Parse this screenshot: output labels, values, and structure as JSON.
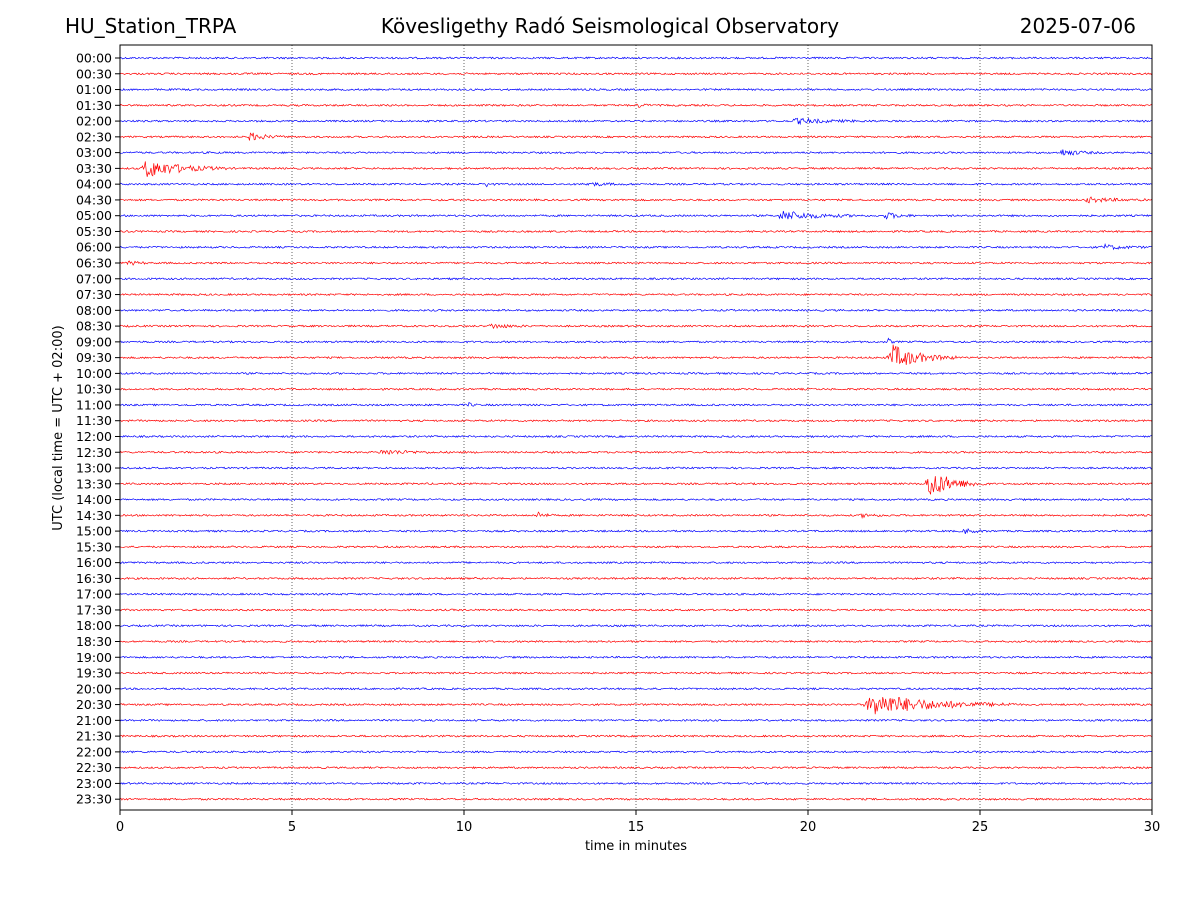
{
  "header": {
    "station": "HU_Station_TRPA",
    "title": "Kövesligethy Radó Seismological Observatory",
    "date": "2025-07-06"
  },
  "chart_data": {
    "type": "line",
    "title": "Kövesligethy Radó Seismological Observatory",
    "xlabel": "time in minutes",
    "ylabel": "UTC (local time = UTC + 02:00)",
    "xlim": [
      0,
      30
    ],
    "xticks": [
      0,
      5,
      10,
      15,
      20,
      25,
      30
    ],
    "x_gridlines": [
      5,
      10,
      15,
      20,
      25
    ],
    "grid": "x-dotted",
    "colors": {
      "even_rows": "#0000ff",
      "odd_rows": "#ff0000"
    },
    "rows": [
      {
        "label": "00:00",
        "events": []
      },
      {
        "label": "00:30",
        "events": []
      },
      {
        "label": "01:00",
        "events": []
      },
      {
        "label": "01:30",
        "events": [
          {
            "t": 15.0,
            "amp": 3,
            "dur": 0.5
          }
        ]
      },
      {
        "label": "02:00",
        "events": [
          {
            "t": 19.5,
            "amp": 3,
            "dur": 2.5
          }
        ]
      },
      {
        "label": "02:30",
        "events": [
          {
            "t": 3.7,
            "amp": 5,
            "dur": 1.2
          }
        ]
      },
      {
        "label": "03:00",
        "events": [
          {
            "t": 27.3,
            "amp": 4,
            "dur": 1.3
          }
        ]
      },
      {
        "label": "03:30",
        "events": [
          {
            "t": 0.6,
            "amp": 12,
            "dur": 2.5
          }
        ]
      },
      {
        "label": "04:00",
        "events": [
          {
            "t": 10.6,
            "amp": 4,
            "dur": 0.3
          },
          {
            "t": 13.5,
            "amp": 2,
            "dur": 1.5
          }
        ]
      },
      {
        "label": "04:30",
        "events": [
          {
            "t": 28.0,
            "amp": 3,
            "dur": 2.0
          }
        ]
      },
      {
        "label": "05:00",
        "events": [
          {
            "t": 19.1,
            "amp": 6,
            "dur": 2.5
          },
          {
            "t": 22.2,
            "amp": 4,
            "dur": 1.0
          }
        ]
      },
      {
        "label": "05:30",
        "events": []
      },
      {
        "label": "06:00",
        "events": [
          {
            "t": 28.5,
            "amp": 3,
            "dur": 1.5
          }
        ]
      },
      {
        "label": "06:30",
        "events": [
          {
            "t": 0.2,
            "amp": 3,
            "dur": 0.6
          }
        ]
      },
      {
        "label": "07:00",
        "events": []
      },
      {
        "label": "07:30",
        "events": []
      },
      {
        "label": "08:00",
        "events": []
      },
      {
        "label": "08:30",
        "events": [
          {
            "t": 10.7,
            "amp": 3,
            "dur": 1.3
          }
        ]
      },
      {
        "label": "09:00",
        "events": [
          {
            "t": 22.3,
            "amp": 6,
            "dur": 0.2
          }
        ]
      },
      {
        "label": "09:30",
        "events": [
          {
            "t": 22.3,
            "amp": 16,
            "dur": 2.0
          }
        ]
      },
      {
        "label": "10:00",
        "events": []
      },
      {
        "label": "10:30",
        "events": []
      },
      {
        "label": "11:00",
        "events": [
          {
            "t": 10.1,
            "amp": 3,
            "dur": 0.3
          }
        ]
      },
      {
        "label": "11:30",
        "events": []
      },
      {
        "label": "12:00",
        "events": []
      },
      {
        "label": "12:30",
        "events": [
          {
            "t": 7.5,
            "amp": 3,
            "dur": 2.0
          }
        ]
      },
      {
        "label": "13:00",
        "events": []
      },
      {
        "label": "13:30",
        "events": [
          {
            "t": 23.4,
            "amp": 18,
            "dur": 1.8
          }
        ]
      },
      {
        "label": "14:00",
        "events": []
      },
      {
        "label": "14:30",
        "events": [
          {
            "t": 12.1,
            "amp": 5,
            "dur": 0.5
          },
          {
            "t": 21.5,
            "amp": 2,
            "dur": 1.0
          }
        ]
      },
      {
        "label": "15:00",
        "events": [
          {
            "t": 24.5,
            "amp": 3,
            "dur": 0.8
          }
        ]
      },
      {
        "label": "15:30",
        "events": []
      },
      {
        "label": "16:00",
        "events": []
      },
      {
        "label": "16:30",
        "events": []
      },
      {
        "label": "17:00",
        "events": []
      },
      {
        "label": "17:30",
        "events": []
      },
      {
        "label": "18:00",
        "events": []
      },
      {
        "label": "18:30",
        "events": []
      },
      {
        "label": "19:00",
        "events": []
      },
      {
        "label": "19:30",
        "events": []
      },
      {
        "label": "20:00",
        "events": []
      },
      {
        "label": "20:30",
        "events": [
          {
            "t": 21.6,
            "amp": 14,
            "dur": 4.5
          }
        ]
      },
      {
        "label": "21:00",
        "events": []
      },
      {
        "label": "21:30",
        "events": []
      },
      {
        "label": "22:00",
        "events": []
      },
      {
        "label": "22:30",
        "events": []
      },
      {
        "label": "23:00",
        "events": []
      },
      {
        "label": "23:30",
        "events": []
      }
    ]
  }
}
